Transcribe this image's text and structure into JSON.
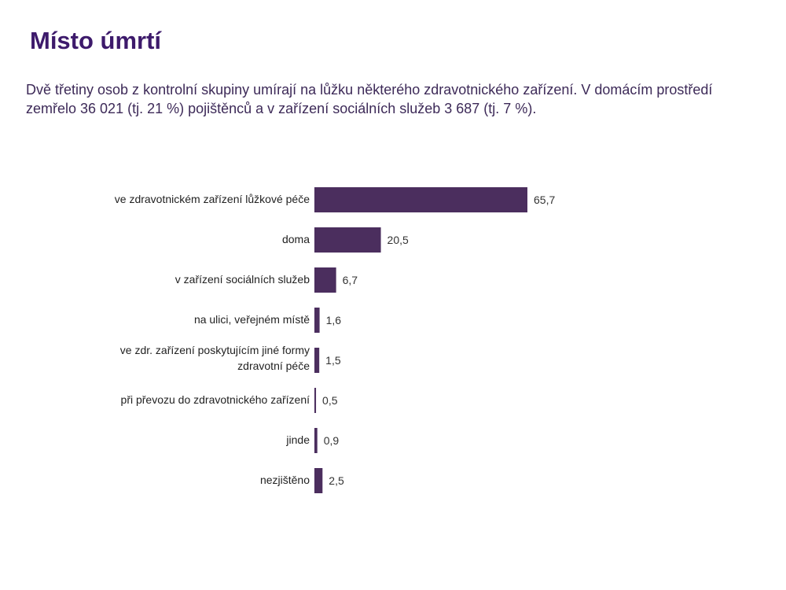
{
  "page": {
    "title": "Místo úmrtí",
    "subtitle": "Dvě třetiny osob z kontrolní skupiny umírají na lůžku některého zdravotnického zařízení. V domácím prostředí zemřelo 36 021 (tj. 21 %) pojištěnců a v zařízení sociálních služeb 3 687 (tj. 7 %)."
  },
  "chart_data": {
    "type": "bar",
    "orientation": "horizontal",
    "categories": [
      [
        "ve zdravotnickém zařízení lůžkové péče"
      ],
      [
        "doma"
      ],
      [
        "v zařízení sociálních služeb"
      ],
      [
        "na ulici, veřejném místě"
      ],
      [
        "ve zdr. zařízení poskytujícím jiné formy",
        "zdravotní péče"
      ],
      [
        "při převozu do zdravotnického zařízení"
      ],
      [
        "jinde"
      ],
      [
        "nezjištěno"
      ]
    ],
    "values": [
      65.7,
      20.5,
      6.7,
      1.6,
      1.5,
      0.5,
      0.9,
      2.5
    ],
    "value_labels": [
      "65,7",
      "20,5",
      "6,7",
      "1,6",
      "1,5",
      "0,5",
      "0,9",
      "2,5"
    ],
    "xlim": [
      0,
      100
    ],
    "grid": false,
    "bar_color": "#4b2e5e"
  }
}
